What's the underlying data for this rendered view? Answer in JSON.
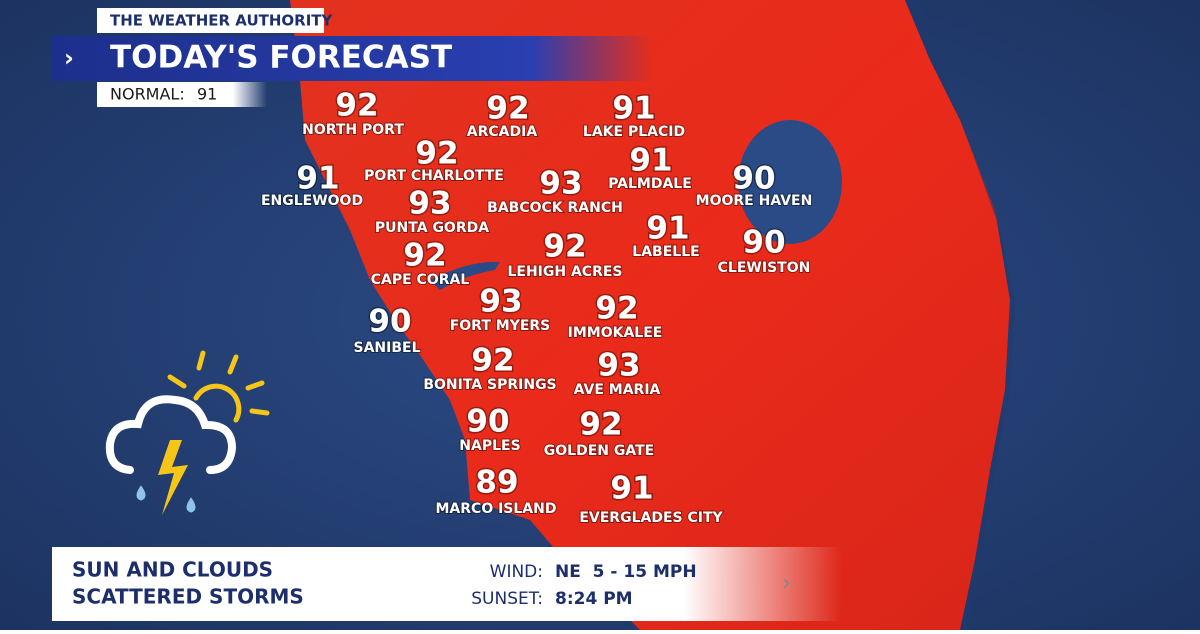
{
  "header": {
    "brand": "THE WEATHER AUTHORITY",
    "title": "TODAY'S FORECAST",
    "normal_label": "NORMAL:",
    "normal_value": 91
  },
  "cities": [
    {
      "name": "NORTH PORT",
      "temp": 92
    },
    {
      "name": "ARCADIA",
      "temp": 92
    },
    {
      "name": "LAKE PLACID",
      "temp": 91
    },
    {
      "name": "PORT CHARLOTTE",
      "temp": 92
    },
    {
      "name": "PALMDALE",
      "temp": 91
    },
    {
      "name": "ENGLEWOOD",
      "temp": 91
    },
    {
      "name": "BABCOCK RANCH",
      "temp": 93
    },
    {
      "name": "MOORE HAVEN",
      "temp": 90
    },
    {
      "name": "PUNTA GORDA",
      "temp": 93
    },
    {
      "name": "LABELLE",
      "temp": 91
    },
    {
      "name": "CLEWISTON",
      "temp": 90
    },
    {
      "name": "CAPE CORAL",
      "temp": 92
    },
    {
      "name": "LEHIGH ACRES",
      "temp": 92
    },
    {
      "name": "FORT MYERS",
      "temp": 93
    },
    {
      "name": "IMMOKALEE",
      "temp": 92
    },
    {
      "name": "SANIBEL",
      "temp": 90
    },
    {
      "name": "BONITA SPRINGS",
      "temp": 92
    },
    {
      "name": "AVE MARIA",
      "temp": 93
    },
    {
      "name": "NAPLES",
      "temp": 90
    },
    {
      "name": "GOLDEN GATE",
      "temp": 92
    },
    {
      "name": "MARCO ISLAND",
      "temp": 89
    },
    {
      "name": "EVERGLADES CITY",
      "temp": 91
    }
  ],
  "footer": {
    "conditions": [
      "SUN AND CLOUDS",
      "SCATTERED STORMS"
    ],
    "wind_label": "WIND:",
    "wind_value": "NE  5 - 15 MPH",
    "sunset_label": "SUNSET:",
    "sunset_value": "8:24 PM"
  }
}
